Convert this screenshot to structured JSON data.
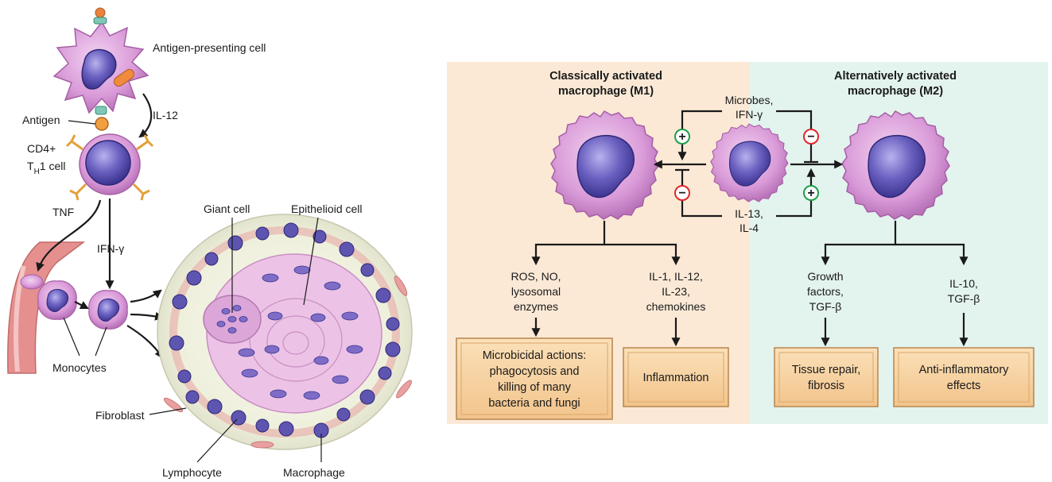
{
  "left_panel": {
    "apc_label": "Antigen-presenting cell",
    "il12_label": "IL-12",
    "antigen_label": "Antigen",
    "cd4_label_line1": "CD4+",
    "th1_label_main": "T",
    "th1_label_sub": "H",
    "th1_label_rest": "1 cell",
    "tnf_label": "TNF",
    "ifn_label": "IFN-γ",
    "monocytes_label": "Monocytes",
    "giant_cell_label": "Giant cell",
    "epithelioid_label": "Epithelioid cell",
    "fibroblast_label": "Fibroblast",
    "lymphocyte_label": "Lymphocyte",
    "macrophage_label": "Macrophage"
  },
  "right_panel": {
    "m1_title_line1": "Classically activated",
    "m1_title_line2": "macrophage (M1)",
    "m2_title_line1": "Alternatively activated",
    "m2_title_line2": "macrophage (M2)",
    "microbes_line1": "Microbes,",
    "microbes_line2": "IFN-γ",
    "il13_line1": "IL-13,",
    "il13_line2": "IL-4",
    "plus_symbol": "+",
    "minus_symbol": "−",
    "m1_products": [
      {
        "lines": [
          "ROS, NO,",
          "lysosomal",
          "enzymes"
        ]
      },
      {
        "lines": [
          "IL-1, IL-12,",
          "IL-23,",
          "chemokines"
        ]
      }
    ],
    "m2_products": [
      {
        "lines": [
          "Growth",
          "factors,",
          "TGF-β"
        ]
      },
      {
        "lines": [
          "IL-10,",
          "TGF-β"
        ]
      }
    ],
    "m1_outcomes": [
      {
        "lines": [
          "Microbicidal actions:",
          "phagocytosis and",
          "killing of many",
          "bacteria and fungi"
        ]
      },
      {
        "lines": [
          "Inflammation"
        ]
      }
    ],
    "m2_outcomes": [
      {
        "lines": [
          "Tissue repair,",
          "fibrosis"
        ]
      },
      {
        "lines": [
          "Anti-inflammatory",
          "effects"
        ]
      }
    ]
  },
  "colors": {
    "m1_background": "#fbe9d6",
    "m2_background": "#e3f3ee",
    "cell_pink": "#d99ad8",
    "nucleus": "#5d55b0",
    "box_fill": "#f6cf9c",
    "plus_green": "#1e9e4a",
    "minus_red": "#e0262c",
    "vessel": "#e58f8f"
  }
}
